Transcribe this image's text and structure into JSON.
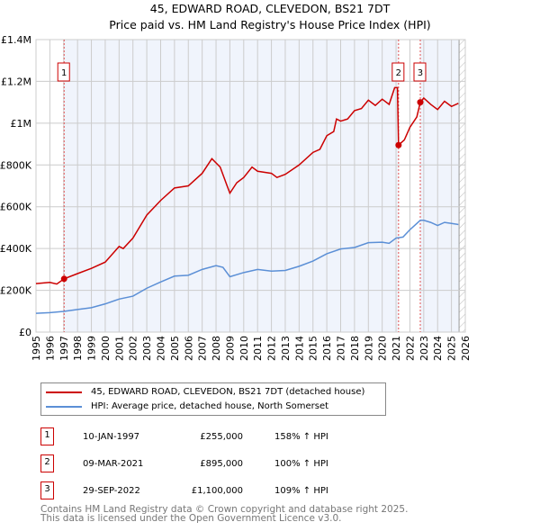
{
  "title": "45, EDWARD ROAD, CLEVEDON, BS21 7DT",
  "subtitle": "Price paid vs. HM Land Registry's House Price Index (HPI)",
  "chart_data": {
    "type": "line",
    "xlim": [
      1995,
      2026
    ],
    "ylim": [
      0,
      1400000
    ],
    "x_ticks": [
      "1995",
      "1996",
      "1997",
      "1998",
      "1999",
      "2000",
      "2001",
      "2002",
      "2003",
      "2004",
      "2005",
      "2006",
      "2007",
      "2008",
      "2009",
      "2010",
      "2011",
      "2012",
      "2013",
      "2014",
      "2015",
      "2016",
      "2017",
      "2018",
      "2019",
      "2020",
      "2021",
      "2022",
      "2023",
      "2024",
      "2025",
      "2026"
    ],
    "y_ticks": [
      {
        "v": 0,
        "label": "£0"
      },
      {
        "v": 200000,
        "label": "£200K"
      },
      {
        "v": 400000,
        "label": "£400K"
      },
      {
        "v": 600000,
        "label": "£600K"
      },
      {
        "v": 800000,
        "label": "£800K"
      },
      {
        "v": 1000000,
        "label": "£1M"
      },
      {
        "v": 1200000,
        "label": "£1.2M"
      },
      {
        "v": 1400000,
        "label": "£1.4M"
      }
    ],
    "series": [
      {
        "name": "45, EDWARD ROAD, CLEVEDON, BS21 7DT (detached house)",
        "color": "#cc0000",
        "x": [
          1995,
          1996,
          1996.5,
          1997.03,
          1998,
          1999,
          2000,
          2001,
          2001.3,
          2002,
          2003,
          2004,
          2005,
          2006,
          2007,
          2007.7,
          2008.3,
          2008.8,
          2009,
          2009.5,
          2010,
          2010.6,
          2011,
          2012,
          2012.4,
          2013,
          2014,
          2015,
          2015.5,
          2016,
          2016.5,
          2016.7,
          2017,
          2017.5,
          2018,
          2018.5,
          2019,
          2019.5,
          2020,
          2020.5,
          2020.9,
          2021.1,
          2021.18,
          2021.6,
          2022,
          2022.5,
          2022.75,
          2023,
          2023.5,
          2024,
          2024.5,
          2025,
          2025.5
        ],
        "y": [
          232000,
          238000,
          230000,
          255000,
          280000,
          305000,
          335000,
          410000,
          400000,
          450000,
          560000,
          630000,
          690000,
          700000,
          760000,
          830000,
          790000,
          700000,
          665000,
          715000,
          740000,
          790000,
          770000,
          760000,
          740000,
          755000,
          800000,
          860000,
          875000,
          940000,
          960000,
          1020000,
          1010000,
          1020000,
          1060000,
          1070000,
          1110000,
          1085000,
          1115000,
          1090000,
          1170000,
          1170000,
          895000,
          920000,
          980000,
          1030000,
          1100000,
          1120000,
          1090000,
          1065000,
          1105000,
          1080000,
          1095000
        ]
      },
      {
        "name": "HPI: Average price, detached house, North Somerset",
        "color": "#5b8fd6",
        "x": [
          1995,
          1996,
          1997,
          1998,
          1999,
          2000,
          2001,
          2002,
          2003,
          2004,
          2005,
          2006,
          2007,
          2008,
          2008.5,
          2009,
          2010,
          2011,
          2012,
          2013,
          2014,
          2015,
          2016,
          2017,
          2018,
          2019,
          2020,
          2020.5,
          2021,
          2021.5,
          2022,
          2022.75,
          2023,
          2023.5,
          2024,
          2024.5,
          2025,
          2025.5
        ],
        "y": [
          90000,
          93000,
          99000,
          108000,
          117000,
          135000,
          158000,
          172000,
          210000,
          240000,
          268000,
          272000,
          300000,
          318000,
          310000,
          265000,
          285000,
          300000,
          292000,
          295000,
          315000,
          340000,
          375000,
          398000,
          405000,
          428000,
          430000,
          425000,
          450000,
          455000,
          490000,
          535000,
          535000,
          525000,
          510000,
          525000,
          520000,
          515000
        ]
      }
    ],
    "sales": [
      {
        "label": "1",
        "x": 1997.03,
        "y": 255000,
        "date": "10-JAN-1997",
        "price": "£255,000",
        "hpi": "158% ↑ HPI"
      },
      {
        "label": "2",
        "x": 2021.18,
        "y": 895000,
        "date": "09-MAR-2021",
        "price": "£895,000",
        "hpi": "100% ↑ HPI"
      },
      {
        "label": "3",
        "x": 2022.75,
        "y": 1100000,
        "date": "29-SEP-2022",
        "price": "£1,100,000",
        "hpi": "109% ↑ HPI"
      }
    ],
    "forecast_start": 2025.55,
    "grid": true
  },
  "legend": {
    "red": "45, EDWARD ROAD, CLEVEDON, BS21 7DT (detached house)",
    "blue": "HPI: Average price, detached house, North Somerset"
  },
  "footer": [
    "Contains HM Land Registry data © Crown copyright and database right 2025.",
    "This data is licensed under the Open Government Licence v3.0."
  ]
}
